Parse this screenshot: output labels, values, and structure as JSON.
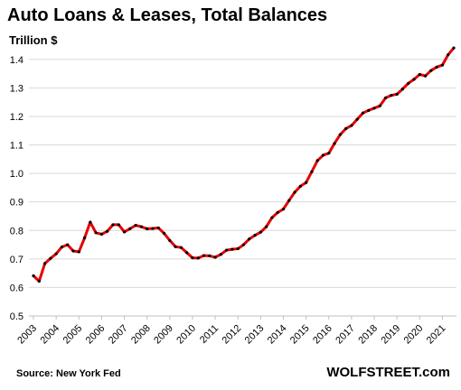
{
  "chart_data": {
    "type": "line",
    "title": "Auto Loans & Leases, Total Balances",
    "ylabel": "Trillion $",
    "xlabel": "",
    "ylim": [
      0.5,
      1.45
    ],
    "yticks": [
      "0.5",
      "0.6",
      "0.7",
      "0.8",
      "0.9",
      "1.0",
      "1.1",
      "1.2",
      "1.3",
      "1.4"
    ],
    "xticks": [
      "2003",
      "2004",
      "2005",
      "2006",
      "2007",
      "2008",
      "2009",
      "2010",
      "2011",
      "2012",
      "2013",
      "2014",
      "2015",
      "2016",
      "2017",
      "2018",
      "2019",
      "2020",
      "2021"
    ],
    "grid": "horizontal",
    "series_color": "#e60000",
    "marker_color": "#000000",
    "series": [
      {
        "x": [
          "2003Q1",
          "2003Q2",
          "2003Q3",
          "2003Q4",
          "2004Q1",
          "2004Q2",
          "2004Q3",
          "2004Q4",
          "2005Q1",
          "2005Q2",
          "2005Q3",
          "2005Q4",
          "2006Q1",
          "2006Q2",
          "2006Q3",
          "2006Q4",
          "2007Q1",
          "2007Q2",
          "2007Q3",
          "2007Q4",
          "2008Q1",
          "2008Q2",
          "2008Q3",
          "2008Q4",
          "2009Q1",
          "2009Q2",
          "2009Q3",
          "2009Q4",
          "2010Q1",
          "2010Q2",
          "2010Q3",
          "2010Q4",
          "2011Q1",
          "2011Q2",
          "2011Q3",
          "2011Q4",
          "2012Q1",
          "2012Q2",
          "2012Q3",
          "2012Q4",
          "2013Q1",
          "2013Q2",
          "2013Q3",
          "2013Q4",
          "2014Q1",
          "2014Q2",
          "2014Q3",
          "2014Q4",
          "2015Q1",
          "2015Q2",
          "2015Q3",
          "2015Q4",
          "2016Q1",
          "2016Q2",
          "2016Q3",
          "2016Q4",
          "2017Q1",
          "2017Q2",
          "2017Q3",
          "2017Q4",
          "2018Q1",
          "2018Q2",
          "2018Q3",
          "2018Q4",
          "2019Q1",
          "2019Q2",
          "2019Q3",
          "2019Q4",
          "2020Q1",
          "2020Q2",
          "2020Q3",
          "2020Q4",
          "2021Q1",
          "2021Q2",
          "2021Q3"
        ],
        "values": [
          0.641,
          0.622,
          0.684,
          0.702,
          0.718,
          0.742,
          0.75,
          0.728,
          0.725,
          0.774,
          0.829,
          0.792,
          0.787,
          0.797,
          0.82,
          0.82,
          0.795,
          0.806,
          0.818,
          0.813,
          0.806,
          0.807,
          0.809,
          0.79,
          0.765,
          0.743,
          0.74,
          0.722,
          0.704,
          0.703,
          0.712,
          0.711,
          0.706,
          0.716,
          0.731,
          0.734,
          0.736,
          0.75,
          0.77,
          0.783,
          0.794,
          0.813,
          0.845,
          0.863,
          0.875,
          0.905,
          0.934,
          0.955,
          0.968,
          1.006,
          1.045,
          1.064,
          1.071,
          1.105,
          1.136,
          1.157,
          1.168,
          1.19,
          1.212,
          1.221,
          1.229,
          1.237,
          1.265,
          1.274,
          1.278,
          1.296,
          1.316,
          1.33,
          1.347,
          1.342,
          1.361,
          1.373,
          1.38,
          1.416,
          1.44
        ]
      }
    ],
    "source": "Source: New York Fed",
    "watermark": "WOLFSTREET.com"
  }
}
